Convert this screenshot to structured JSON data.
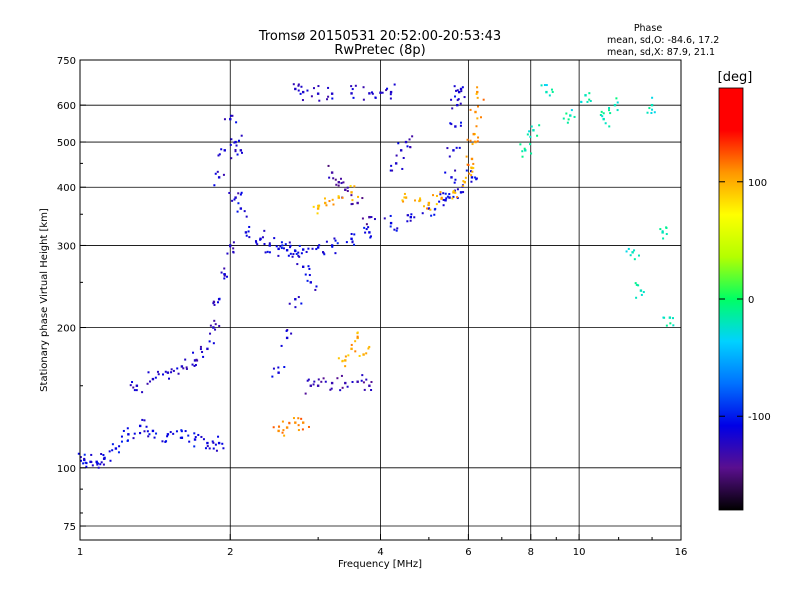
{
  "chart_data": {
    "type": "scatter",
    "title": "Tromsø 20150531 20:52:00-20:53:43",
    "subtitle": "RwPretec (8p)",
    "xlabel": "Frequency [MHz]",
    "ylabel": "Stationary phase Virtual Height [km]",
    "x_scale": "log",
    "y_scale": "log",
    "xlim": [
      1,
      16
    ],
    "ylim": [
      70,
      750
    ],
    "x_ticks": [
      1,
      2,
      4,
      6,
      8,
      10,
      16
    ],
    "y_ticks": [
      75,
      100,
      200,
      300,
      400,
      500,
      600,
      750
    ],
    "grid": true,
    "stats": {
      "heading": "Phase",
      "line_o": "mean, sd,O: -84.6, 17.2",
      "line_x": "mean, sd,X:  87.9, 21.1"
    },
    "colorbar": {
      "label": "[deg]",
      "range": [
        -180,
        180
      ],
      "ticks": [
        100,
        0,
        -100
      ],
      "stops": [
        "#000000",
        "#5a0f8f",
        "#0000e6",
        "#0072ff",
        "#00d2ff",
        "#00ff64",
        "#b4ff00",
        "#ffff00",
        "#ff9600",
        "#ff0000",
        "#ff0000"
      ]
    },
    "series": [
      {
        "x": [
          1.02,
          1.05,
          1.08,
          1.12,
          1.18,
          1.25,
          1.32,
          1.4,
          1.5,
          1.6,
          1.7,
          1.8,
          1.9
        ],
        "y": [
          104,
          103,
          103,
          105,
          110,
          118,
          123,
          120,
          118,
          116,
          115,
          113,
          113
        ],
        "phase": -110
      },
      {
        "x": [
          1.3,
          1.4,
          1.5,
          1.6,
          1.7,
          1.8,
          1.85,
          1.9,
          1.95,
          2.0,
          2.05,
          2.1
        ],
        "y": [
          150,
          155,
          160,
          165,
          170,
          180,
          200,
          230,
          260,
          300,
          380,
          480
        ],
        "phase": -120
      },
      {
        "x": [
          1.9,
          1.95,
          2.0,
          2.05,
          2.1,
          2.15
        ],
        "y": [
          420,
          480,
          560,
          500,
          360,
          320
        ],
        "phase": -115
      },
      {
        "x": [
          2.3,
          2.4,
          2.5,
          2.6,
          2.7,
          2.8,
          3.0,
          3.2,
          3.5,
          3.8,
          4.2,
          4.6,
          5.0,
          5.4,
          5.8,
          6.1
        ],
        "y": [
          310,
          300,
          295,
          293,
          292,
          294,
          297,
          300,
          310,
          320,
          335,
          345,
          360,
          375,
          390,
          420
        ],
        "phase": -110
      },
      {
        "x": [
          2.5,
          2.6,
          2.7,
          2.8,
          2.9
        ],
        "y": [
          160,
          190,
          230,
          270,
          250
        ],
        "phase": -115
      },
      {
        "x": [
          2.9,
          3.0,
          3.2,
          3.4,
          3.6,
          3.8
        ],
        "y": [
          150,
          150,
          152,
          152,
          153,
          150
        ],
        "phase": -130
      },
      {
        "x": [
          2.7,
          2.8,
          3.0,
          3.2,
          3.5,
          3.8,
          4.0,
          4.2
        ],
        "y": [
          650,
          640,
          635,
          635,
          636,
          636,
          638,
          640
        ],
        "phase": -120
      },
      {
        "x": [
          5.5,
          5.55,
          5.6,
          5.65,
          5.7,
          5.75,
          5.8
        ],
        "y": [
          380,
          420,
          480,
          540,
          600,
          640,
          650
        ],
        "phase": -115
      },
      {
        "x": [
          4.3,
          4.4,
          4.5
        ],
        "y": [
          450,
          480,
          500
        ],
        "phase": -120
      },
      {
        "x": [
          3.2,
          3.3,
          3.4,
          3.6,
          3.8
        ],
        "y": [
          430,
          410,
          395,
          370,
          345
        ],
        "phase": -135
      },
      {
        "x": [
          4.5,
          4.8,
          5.0,
          5.3,
          5.6,
          5.9,
          6.1,
          6.2
        ],
        "y": [
          380,
          375,
          370,
          378,
          390,
          410,
          440,
          500
        ],
        "phase": 100
      },
      {
        "x": [
          6.1,
          6.15,
          6.2,
          6.25
        ],
        "y": [
          460,
          520,
          580,
          640
        ],
        "phase": 110
      },
      {
        "x": [
          3.4,
          3.5,
          3.6,
          3.7
        ],
        "y": [
          170,
          180,
          190,
          175
        ],
        "phase": 100
      },
      {
        "x": [
          2.5,
          2.6,
          2.7,
          2.8
        ],
        "y": [
          120,
          122,
          125,
          125
        ],
        "phase": 110
      },
      {
        "x": [
          3.0,
          3.1,
          3.3,
          3.5
        ],
        "y": [
          360,
          370,
          380,
          390
        ],
        "phase": 100
      },
      {
        "x": [
          7.8,
          8.1,
          8.6,
          9.6,
          10.3,
          11.2,
          11.8,
          12.8,
          13.3,
          14.0,
          14.7,
          15.2
        ],
        "y": [
          480,
          530,
          640,
          570,
          630,
          560,
          600,
          290,
          240,
          600,
          320,
          210
        ],
        "phase": -20
      }
    ]
  }
}
